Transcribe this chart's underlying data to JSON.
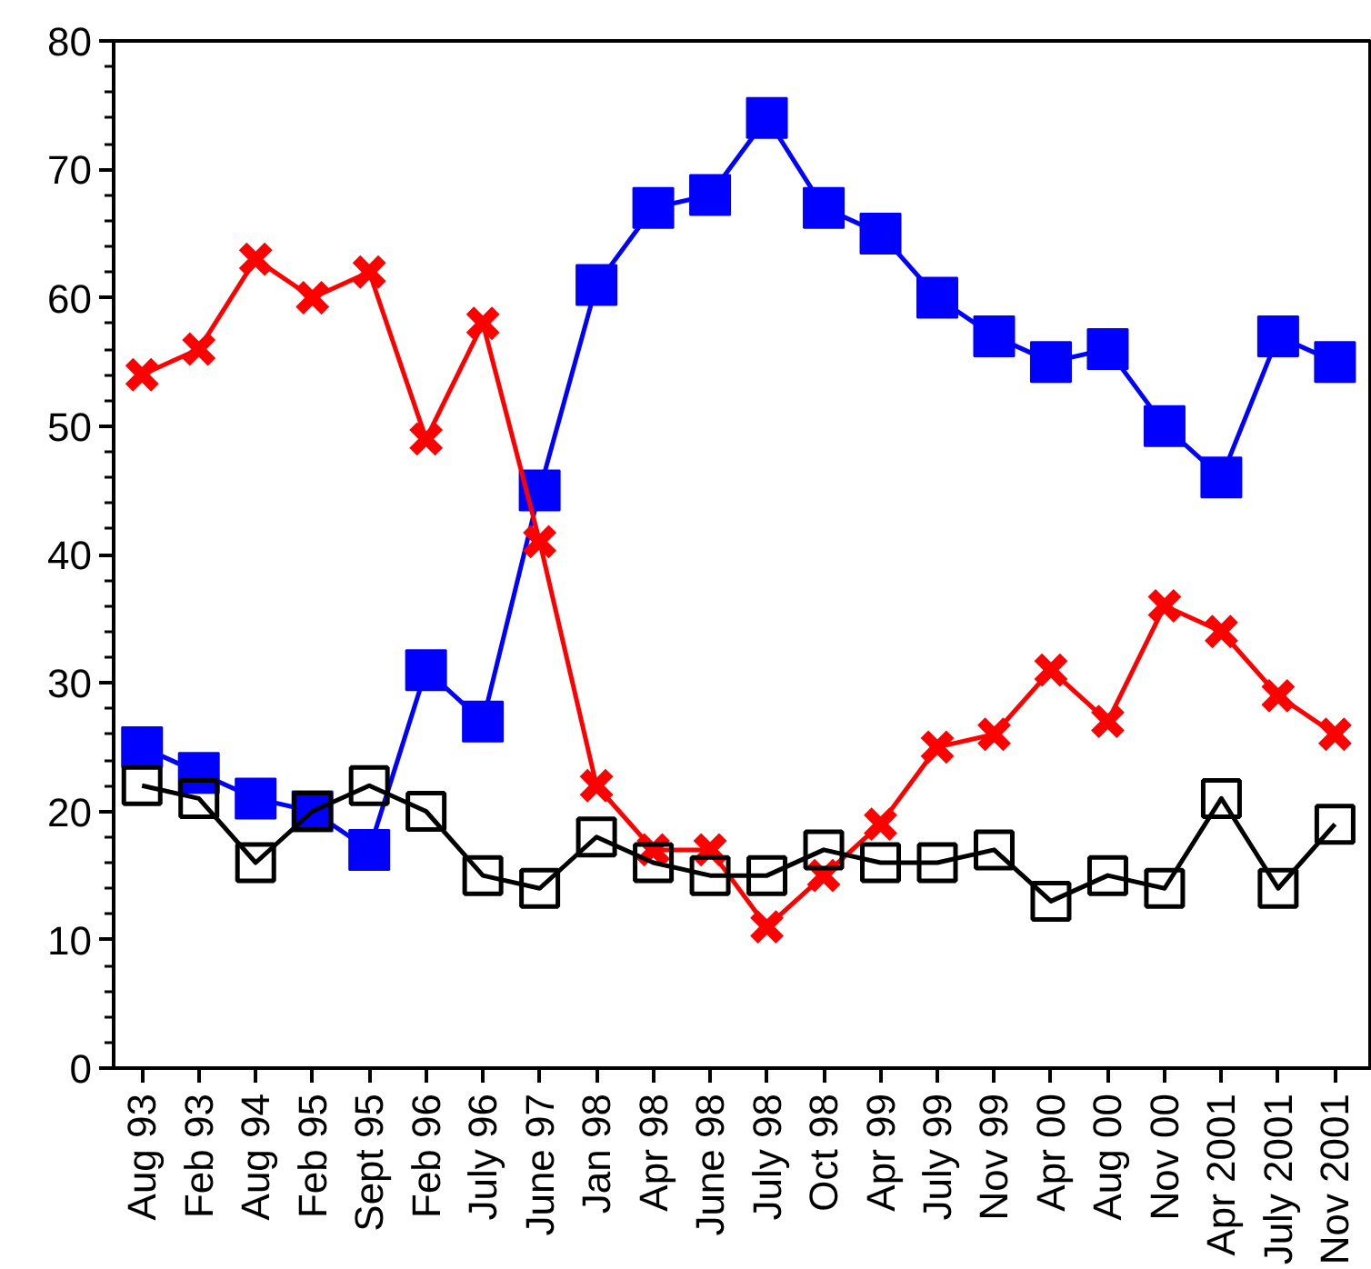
{
  "chart_data": {
    "type": "line",
    "categories": [
      "Aug 93",
      "Feb 93",
      "Aug 94",
      "Feb 95",
      "Sept 95",
      "Feb 96",
      "July 96",
      "June 97",
      "Jan 98",
      "Apr 98",
      "June 98",
      "July 98",
      "Oct 98",
      "Apr 99",
      "July 99",
      "Nov 99",
      "Apr 00",
      "Aug 00",
      "Nov 00",
      "Apr 2001",
      "July 2001",
      "Nov 2001"
    ],
    "series": [
      {
        "color": "#0000ff",
        "marker": "square",
        "values": [
          25,
          23,
          21,
          20,
          17,
          31,
          27,
          45,
          61,
          67,
          68,
          74,
          67,
          65,
          60,
          57,
          55,
          56,
          50,
          46,
          57,
          55
        ]
      },
      {
        "color": "#ff0000",
        "marker": "cross",
        "values": [
          54,
          56,
          63,
          60,
          62,
          49,
          58,
          41,
          22,
          17,
          17,
          11,
          15,
          19,
          25,
          26,
          31,
          27,
          36,
          34,
          29,
          26
        ]
      },
      {
        "color": "#000000",
        "marker": "square",
        "values": [
          22,
          21,
          16,
          20,
          22,
          20,
          15,
          14,
          18,
          16,
          15,
          15,
          17,
          16,
          16,
          17,
          13,
          15,
          14,
          21,
          14,
          19
        ]
      }
    ],
    "ylim": [
      0,
      80
    ],
    "yticks": [
      0,
      10,
      20,
      30,
      40,
      50,
      60,
      70,
      80
    ],
    "grid": false
  }
}
